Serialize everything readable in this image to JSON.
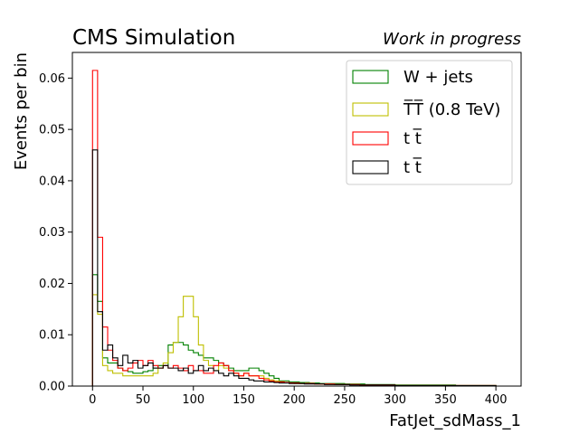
{
  "header": {
    "left": "CMS Simulation",
    "right": "Work in progress"
  },
  "chart_data": {
    "type": "step-histogram",
    "xlabel": "FatJet_sdMass_1",
    "ylabel": "Events per bin",
    "xlim": [
      -20,
      425
    ],
    "ylim": [
      0.0,
      0.065
    ],
    "bin_width": 5,
    "x_start": 0,
    "xticks": [
      0,
      50,
      100,
      150,
      200,
      250,
      300,
      350,
      400
    ],
    "xtick_labels": [
      "0",
      "50",
      "100",
      "150",
      "200",
      "250",
      "300",
      "350",
      "400"
    ],
    "yticks": [
      0.0,
      0.01,
      0.02,
      0.03,
      0.04,
      0.05,
      0.06
    ],
    "ytick_labels": [
      "0.00",
      "0.01",
      "0.02",
      "0.03",
      "0.04",
      "0.05",
      "0.06"
    ],
    "grid": false,
    "legend_position": "top-right",
    "series": [
      {
        "name": "W + jets",
        "color": "#008000",
        "values": [
          0.0217,
          0.0165,
          0.0055,
          0.0045,
          0.0045,
          0.0035,
          0.003,
          0.0028,
          0.0025,
          0.0025,
          0.0028,
          0.003,
          0.0035,
          0.004,
          0.004,
          0.008,
          0.0085,
          0.0085,
          0.008,
          0.007,
          0.0065,
          0.006,
          0.0055,
          0.0055,
          0.005,
          0.0045,
          0.004,
          0.0035,
          0.003,
          0.003,
          0.003,
          0.0035,
          0.0035,
          0.003,
          0.0025,
          0.002,
          0.0015,
          0.001,
          0.001,
          0.0008,
          0.0008,
          0.0007,
          0.0007,
          0.0006,
          0.0006,
          0.0005,
          0.0005,
          0.0005,
          0.0005,
          0.0005,
          0.0004,
          0.0004,
          0.0004,
          0.0004,
          0.0003,
          0.0003,
          0.0003,
          0.0003,
          0.0003,
          0.0003,
          0.0002,
          0.0002,
          0.0002,
          0.0002,
          0.0002,
          0.0002,
          0.0002,
          0.0002,
          0.0002,
          0.0002,
          0.0002,
          0.0002,
          0.0001,
          0.0001,
          0.0001,
          0.0001,
          0.0001,
          0.0001,
          0.0001,
          0.0001
        ]
      },
      {
        "name": "T̅T̅ (0.8 TeV)",
        "color": "#bfbf00",
        "values": [
          0.0178,
          0.014,
          0.004,
          0.003,
          0.0025,
          0.0025,
          0.002,
          0.002,
          0.002,
          0.002,
          0.002,
          0.002,
          0.0025,
          0.0035,
          0.0045,
          0.0065,
          0.0085,
          0.0135,
          0.0175,
          0.0175,
          0.0135,
          0.008,
          0.005,
          0.004,
          0.003,
          0.004,
          0.0035,
          0.003,
          0.0025,
          0.002,
          0.0025,
          0.002,
          0.002,
          0.002,
          0.0015,
          0.0012,
          0.001,
          0.0008,
          0.0007,
          0.0006,
          0.0005,
          0.0005,
          0.0005,
          0.0005,
          0.0004,
          0.0004,
          0.0004,
          0.0004,
          0.0003,
          0.0003,
          0.0003,
          0.0003,
          0.0003,
          0.0002,
          0.0002,
          0.0002,
          0.0002,
          0.0002,
          0.0002,
          0.0002,
          0.0001,
          0.0001,
          0.0001,
          0.0001,
          0.0001,
          0.0001,
          0.0001,
          0.0001,
          0.0001,
          0.0001,
          0.0001,
          0.0001,
          0.0001,
          0.0001,
          0.0001,
          0.0001,
          0.0001,
          0.0001,
          0.0001,
          0.0001
        ]
      },
      {
        "name": "t t̅",
        "color": "#ff0000",
        "values": [
          0.0615,
          0.029,
          0.0115,
          0.007,
          0.005,
          0.0035,
          0.003,
          0.0035,
          0.0045,
          0.005,
          0.004,
          0.005,
          0.004,
          0.0035,
          0.004,
          0.0035,
          0.004,
          0.0035,
          0.003,
          0.004,
          0.003,
          0.003,
          0.0025,
          0.0025,
          0.004,
          0.0045,
          0.004,
          0.003,
          0.0025,
          0.002,
          0.0025,
          0.002,
          0.002,
          0.0015,
          0.0012,
          0.001,
          0.0008,
          0.0008,
          0.0007,
          0.0006,
          0.0006,
          0.0005,
          0.0005,
          0.0005,
          0.0004,
          0.0004,
          0.0004,
          0.0004,
          0.0003,
          0.0003,
          0.0003,
          0.0003,
          0.0003,
          0.0002,
          0.0002,
          0.0002,
          0.0002,
          0.0002,
          0.0002,
          0.0002,
          0.0001,
          0.0001,
          0.0001,
          0.0001,
          0.0001,
          0.0001,
          0.0001,
          0.0001,
          0.0001,
          0.0001,
          0.0001,
          0.0001,
          0.0001,
          0.0001,
          0.0001,
          0.0001,
          0.0001,
          0.0001,
          0.0001,
          0.0001
        ]
      },
      {
        "name": "t t̅",
        "color": "#000000",
        "values": [
          0.046,
          0.0145,
          0.007,
          0.008,
          0.0055,
          0.004,
          0.006,
          0.0045,
          0.005,
          0.0035,
          0.004,
          0.0045,
          0.0035,
          0.0035,
          0.004,
          0.0035,
          0.0035,
          0.003,
          0.0035,
          0.0025,
          0.003,
          0.004,
          0.003,
          0.0035,
          0.003,
          0.0025,
          0.002,
          0.0025,
          0.002,
          0.0015,
          0.0015,
          0.0012,
          0.001,
          0.001,
          0.0008,
          0.0008,
          0.0007,
          0.0006,
          0.0006,
          0.0005,
          0.0005,
          0.0005,
          0.0004,
          0.0004,
          0.0004,
          0.0004,
          0.0003,
          0.0003,
          0.0003,
          0.0003,
          0.0003,
          0.0002,
          0.0002,
          0.0002,
          0.0002,
          0.0002,
          0.0002,
          0.0002,
          0.0002,
          0.0002,
          0.0001,
          0.0001,
          0.0001,
          0.0001,
          0.0001,
          0.0001,
          0.0001,
          0.0001,
          0.0001,
          0.0001,
          0.0001,
          0.0001,
          0.0001,
          0.0001,
          0.0001,
          0.0001,
          0.0001,
          0.0001,
          0.0001,
          0.0001
        ]
      }
    ]
  }
}
